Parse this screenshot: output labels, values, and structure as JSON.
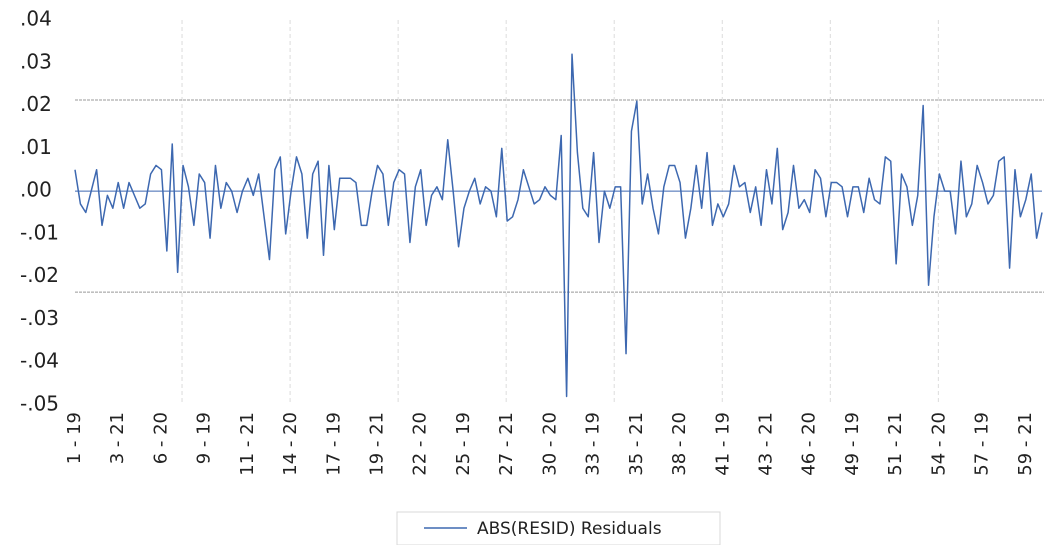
{
  "chart_data": {
    "type": "line",
    "categories": [
      "1 - 19",
      null,
      null,
      null,
      null,
      null,
      null,
      null,
      "3 - 21",
      null,
      null,
      null,
      null,
      null,
      null,
      null,
      "6 - 20",
      null,
      null,
      null,
      null,
      null,
      null,
      null,
      "9 - 19",
      null,
      null,
      null,
      null,
      null,
      null,
      null,
      "11 - 21",
      null,
      null,
      null,
      null,
      null,
      null,
      null,
      "14 - 20",
      null,
      null,
      null,
      null,
      null,
      null,
      null,
      "17 - 19",
      null,
      null,
      null,
      null,
      null,
      null,
      null,
      "19 - 21",
      null,
      null,
      null,
      null,
      null,
      null,
      null,
      "22 - 20",
      null,
      null,
      null,
      null,
      null,
      null,
      null,
      "25 - 19",
      null,
      null,
      null,
      null,
      null,
      null,
      null,
      "27 - 21",
      null,
      null,
      null,
      null,
      null,
      null,
      null,
      "30 - 20",
      null,
      null,
      null,
      null,
      null,
      null,
      null,
      "33 - 19",
      null,
      null,
      null,
      null,
      null,
      null,
      null,
      "35 - 21",
      null,
      null,
      null,
      null,
      null,
      null,
      null,
      "38 - 20",
      null,
      null,
      null,
      null,
      null,
      null,
      null,
      "41 - 19",
      null,
      null,
      null,
      null,
      null,
      null,
      null,
      "43 - 21",
      null,
      null,
      null,
      null,
      null,
      null,
      null,
      "46 - 20",
      null,
      null,
      null,
      null,
      null,
      null,
      null,
      "49 - 19",
      null,
      null,
      null,
      null,
      null,
      null,
      null,
      "51 - 21",
      null,
      null,
      null,
      null,
      null,
      null,
      null,
      "54 - 20",
      null,
      null,
      null,
      null,
      null,
      null,
      null,
      "57 - 19",
      null,
      null,
      null,
      null,
      null,
      null,
      null,
      "59 - 21",
      null,
      null,
      null
    ],
    "series": [
      {
        "name": "ABS(RESID) Residuals",
        "color": "#3d68b0",
        "values": [
          0.005,
          -0.003,
          -0.005,
          0,
          0.005,
          -0.008,
          -0.001,
          -0.004,
          0.002,
          -0.004,
          0.002,
          -0.001,
          -0.004,
          -0.003,
          0.004,
          0.006,
          0.005,
          -0.014,
          0.011,
          -0.019,
          0.006,
          0.001,
          -0.008,
          0.004,
          0.002,
          -0.011,
          0.006,
          -0.004,
          0.002,
          0,
          -0.005,
          0,
          0.003,
          -0.001,
          0.004,
          -0.006,
          -0.016,
          0.005,
          0.008,
          -0.01,
          0,
          0.008,
          0.004,
          -0.011,
          0.004,
          0.007,
          -0.015,
          0.006,
          -0.009,
          0.003,
          0.003,
          0.003,
          0.002,
          -0.008,
          -0.008,
          0,
          0.006,
          0.004,
          -0.008,
          0.002,
          0.005,
          0.004,
          -0.012,
          0.001,
          0.005,
          -0.008,
          -0.001,
          0.001,
          -0.002,
          0.012,
          0,
          -0.013,
          -0.004,
          0,
          0.003,
          -0.003,
          0.001,
          0,
          -0.006,
          0.01,
          -0.007,
          -0.006,
          -0.002,
          0.005,
          0.001,
          -0.003,
          -0.002,
          0.001,
          -0.001,
          -0.002,
          0.013,
          -0.048,
          0.032,
          0.009,
          -0.004,
          -0.006,
          0.009,
          -0.012,
          0,
          -0.004,
          0.001,
          0.001,
          -0.038,
          0.014,
          0.021,
          -0.003,
          0.004,
          -0.004,
          -0.01,
          0.001,
          0.006,
          0.006,
          0.002,
          -0.011,
          -0.004,
          0.006,
          -0.004,
          0.009,
          -0.008,
          -0.003,
          -0.006,
          -0.003,
          0.006,
          0.001,
          0.002,
          -0.005,
          0.001,
          -0.008,
          0.005,
          -0.003,
          0.01,
          -0.009,
          -0.005,
          0.006,
          -0.004,
          -0.002,
          -0.005,
          0.005,
          0.003,
          -0.006,
          0.002,
          0.002,
          0.001,
          -0.006,
          0.001,
          0.001,
          -0.005,
          0.003,
          -0.002,
          -0.003,
          0.008,
          0.007,
          -0.017,
          0.004,
          0.001,
          -0.008,
          -0.001,
          0.02,
          -0.022,
          -0.006,
          0.004,
          0,
          0,
          -0.01,
          0.007,
          -0.006,
          -0.003,
          0.006,
          0.002,
          -0.003,
          -0.001,
          0.007,
          0.008,
          -0.018,
          0.005,
          -0.006,
          -0.002,
          0.004,
          -0.011,
          -0.005
        ]
      }
    ],
    "ylim": [
      -0.05,
      0.04
    ],
    "yticks": [
      {
        "value": 0.04,
        "label": ".04"
      },
      {
        "value": 0.03,
        "label": ".03"
      },
      {
        "value": 0.02,
        "label": ".02"
      },
      {
        "value": 0.01,
        "label": ".01"
      },
      {
        "value": 0,
        "label": ".00"
      },
      {
        "value": -0.01,
        "label": "-.01"
      },
      {
        "value": -0.02,
        "label": "-.02"
      },
      {
        "value": -0.03,
        "label": "-.03"
      },
      {
        "value": -0.04,
        "label": "-.04"
      },
      {
        "value": -0.05,
        "label": "-.05"
      }
    ],
    "reference_lines": [
      0.0213,
      -0.0236
    ],
    "xgrid": true,
    "legend": "bottom"
  }
}
